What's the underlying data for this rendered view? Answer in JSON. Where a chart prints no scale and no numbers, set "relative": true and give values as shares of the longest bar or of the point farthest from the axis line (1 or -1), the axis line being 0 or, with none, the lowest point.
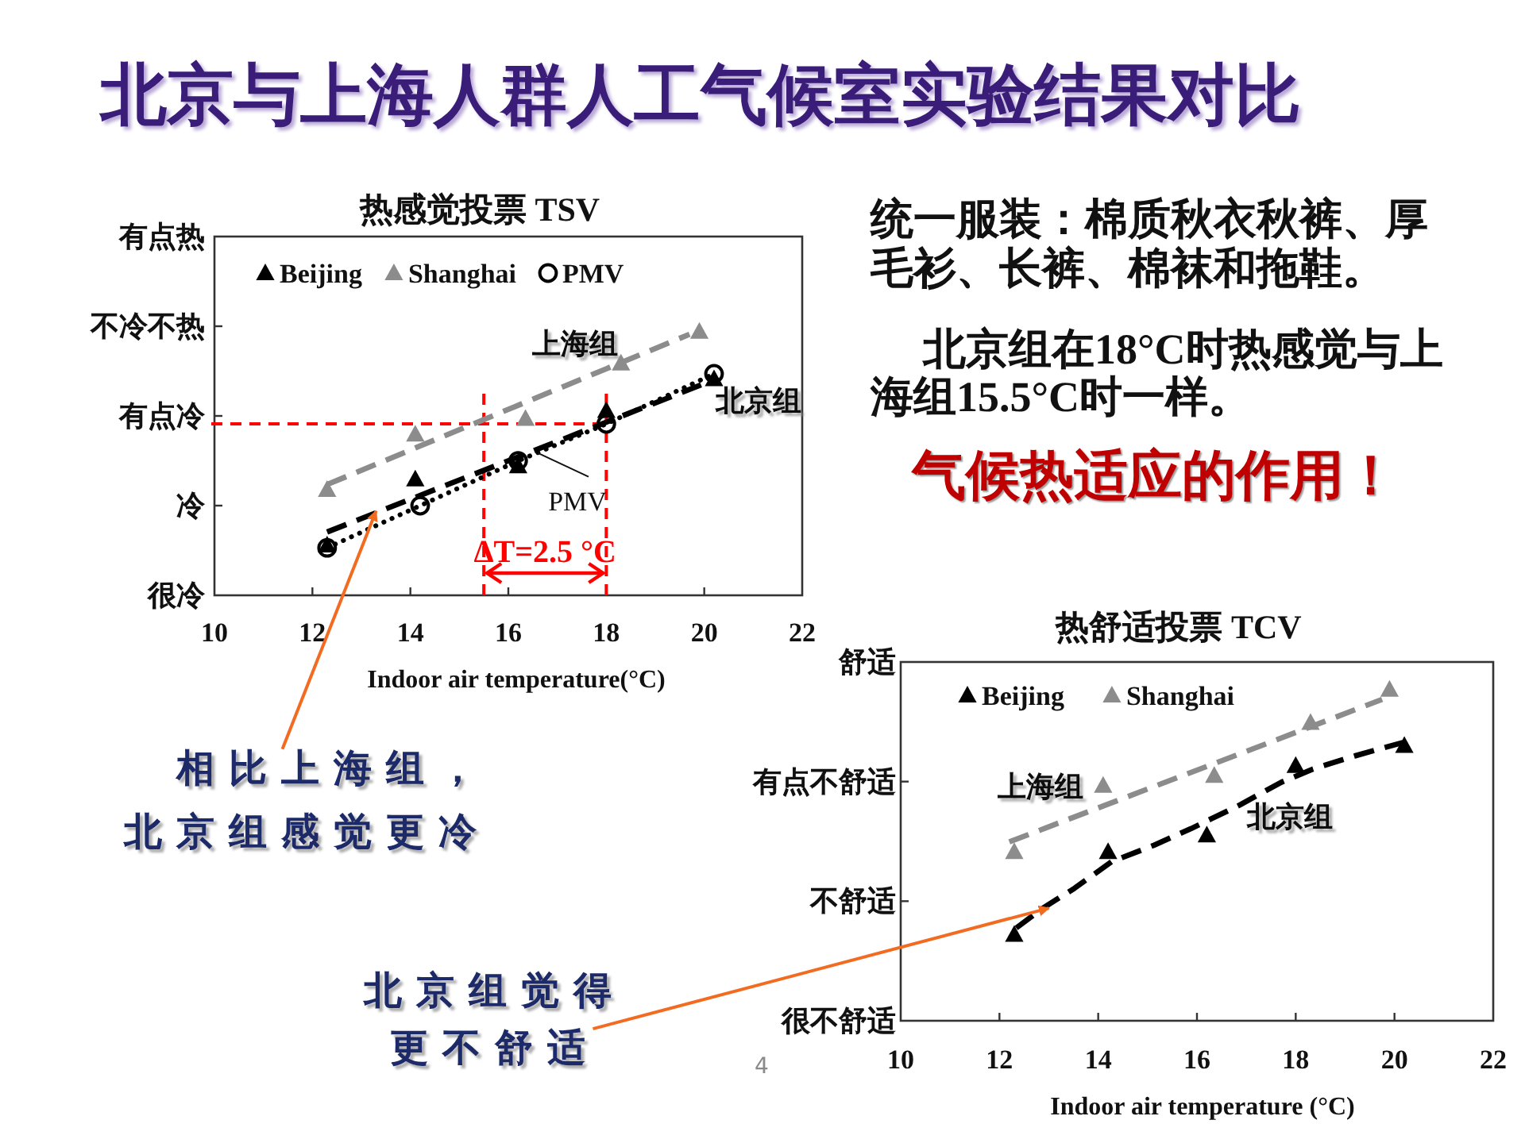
{
  "chart_data": [
    {
      "type": "other",
      "title": "北京与上海人群人工气候室实验结果对比",
      "annotations": [
        "统一服装：棉质秋衣秋裤、厚毛衫、长裤、棉袜和拖鞋。",
        "北京组在18°C时热感觉与上海组15.5°C时一样。",
        "气候热适应的作用！",
        "4"
      ]
    },
    {
      "type": "scatter",
      "title": "热感觉投票 TSV",
      "xlabel": "Indoor air temperature(°C)",
      "xlim": [
        10,
        22
      ],
      "xticks": [
        10,
        12,
        14,
        16,
        18,
        20,
        22
      ],
      "relative": true,
      "legend": "top left",
      "series": [
        {
          "name": "Beijing",
          "color": "#000000",
          "marker": "triangle",
          "x": [
            12.3,
            14.1,
            16.2,
            18.0,
            20.2
          ],
          "values": [
            0.19,
            0.44,
            0.49,
            0.7,
            0.82
          ]
        },
        {
          "name": "Shanghai",
          "color": "#8c8c8c",
          "marker": "triangle",
          "x": [
            12.3,
            14.1,
            16.35,
            18.3,
            19.9
          ],
          "values": [
            0.4,
            0.61,
            0.67,
            0.88,
            1
          ]
        },
        {
          "name": "PMV",
          "type": "line",
          "color": "#000000",
          "marker": "circle",
          "line_style": "dotted",
          "x": [
            12.3,
            14.2,
            16.2,
            18.0,
            20.2
          ],
          "values": [
            0.18,
            0.34,
            0.51,
            0.65,
            0.84
          ]
        },
        {
          "name": "北京组",
          "type": "line",
          "color": "#000000",
          "marker": "none",
          "line_style": "dashed",
          "x": [
            12.3,
            20.1
          ],
          "values": [
            0.24,
            0.81
          ]
        },
        {
          "name": "上海组",
          "type": "line",
          "color": "#8c8c8c",
          "marker": "none",
          "line_style": "dashed",
          "x": [
            12.3,
            19.7
          ],
          "values": [
            0.42,
            0.99
          ]
        }
      ],
      "ref_lines": [
        {
          "axis": "y",
          "value": 0.65,
          "color": "#ff0000",
          "line_style": "dashed"
        },
        {
          "axis": "x",
          "value": 15.5,
          "color": "#ff0000",
          "line_style": "dashed"
        },
        {
          "axis": "x",
          "value": 18,
          "color": "#ff0000",
          "line_style": "dashed"
        }
      ],
      "annotations": [
        "有点热",
        "不冷不热",
        "有点冷",
        "冷",
        "很冷",
        {
          "text": "PMV",
          "x": 16.6,
          "y": 0.54
        },
        "ΔT=2.5 °C",
        {
          "text": "相比上海组，北京组感觉更冷",
          "x": 13.3,
          "y": 0.32
        }
      ]
    },
    {
      "type": "scatter",
      "title": "热舒适投票 TCV",
      "xlabel": "Indoor air temperature (°C)",
      "xlim": [
        10,
        22
      ],
      "xticks": [
        10,
        12,
        14,
        16,
        18,
        20,
        22
      ],
      "relative": true,
      "legend": "top left",
      "series": [
        {
          "name": "Beijing",
          "color": "#000000",
          "marker": "triangle",
          "x": [
            12.3,
            14.2,
            16.2,
            18.0,
            20.2
          ],
          "values": [
            0.26,
            0.51,
            0.56,
            0.77,
            0.83
          ]
        },
        {
          "name": "Shanghai",
          "color": "#8c8c8c",
          "marker": "triangle",
          "x": [
            12.3,
            14.1,
            16.35,
            18.3,
            19.9
          ],
          "values": [
            0.51,
            0.71,
            0.74,
            0.9,
            1
          ]
        },
        {
          "name": "北京组",
          "type": "line",
          "color": "#000000",
          "marker": "none",
          "line_style": "dashed",
          "x": [
            12.34,
            12.88,
            13.52,
            14.27,
            15.13,
            15.88,
            16.85,
            17.71,
            18.35,
            19.21,
            20.17
          ],
          "values": [
            0.28,
            0.34,
            0.4,
            0.48,
            0.53,
            0.58,
            0.65,
            0.72,
            0.76,
            0.8,
            0.84
          ]
        },
        {
          "name": "上海组",
          "type": "line",
          "color": "#8c8c8c",
          "marker": "none",
          "line_style": "dashed",
          "x": [
            12.2,
            19.75
          ],
          "values": [
            0.54,
            0.97
          ]
        }
      ],
      "annotations": [
        "舒适",
        "有点不舒适",
        "不舒适",
        "很不舒适",
        {
          "text": "北京组觉得更不舒适",
          "x": 13.0,
          "y": 0.34
        }
      ]
    }
  ]
}
